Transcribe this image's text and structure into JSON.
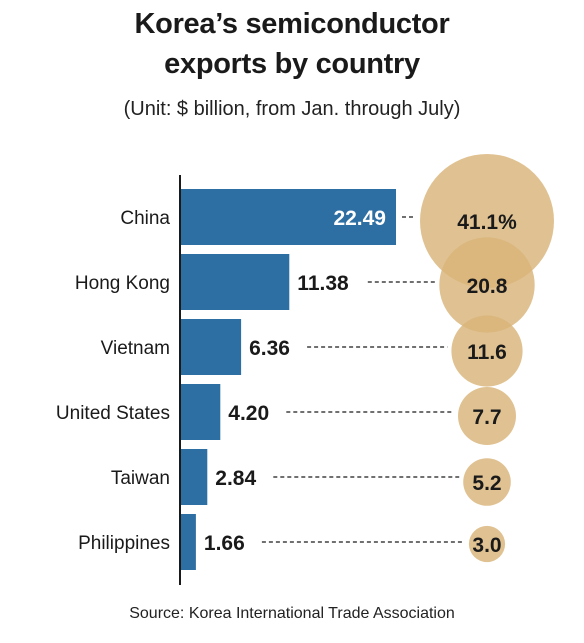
{
  "title_line1": "Korea’s semiconductor",
  "title_line2": "exports by country",
  "subtitle": "(Unit: $ billion, from Jan. through July)",
  "source": "Source: Korea International Trade Association",
  "colors": {
    "bar": "#2e6fa3",
    "bubble": "#d9b57a",
    "bubble_overlap": "#c89a55",
    "axis": "#1a1a1a",
    "text": "#1a1a1a",
    "bar_label_inside": "#ffffff"
  },
  "chart_data": {
    "type": "bar",
    "orientation": "horizontal",
    "categories": [
      "China",
      "Hong Kong",
      "Vietnam",
      "United States",
      "Taiwan",
      "Philippines"
    ],
    "values": [
      22.49,
      11.38,
      6.36,
      4.2,
      2.84,
      1.66
    ],
    "value_labels": [
      "22.49",
      "11.38",
      "6.36",
      "4.20",
      "2.84",
      "1.66"
    ],
    "share_values": [
      41.1,
      20.8,
      11.6,
      7.7,
      5.2,
      3.0
    ],
    "share_labels": [
      "41.1%",
      "20.8",
      "11.6",
      "7.7",
      "5.2",
      "3.0"
    ],
    "title": "Korea’s semiconductor exports by country",
    "xlabel": "",
    "ylabel": "",
    "grid": false,
    "legend": "none"
  }
}
